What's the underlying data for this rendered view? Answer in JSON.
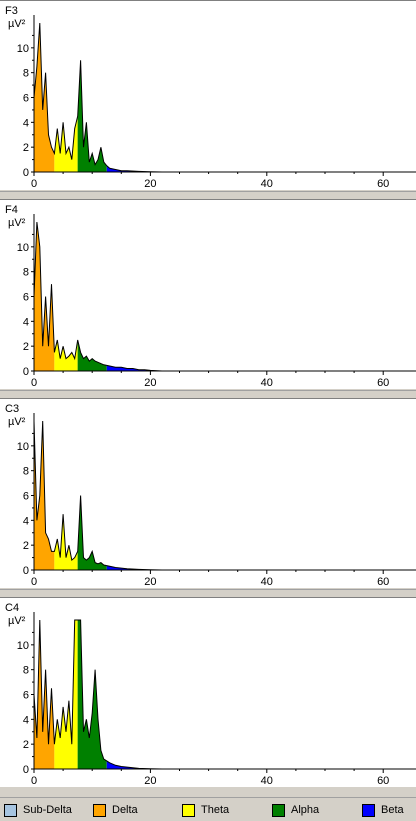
{
  "legend": [
    {
      "name": "Sub-Delta",
      "color": "#a6c4e0"
    },
    {
      "name": "Delta",
      "color": "#ffa500"
    },
    {
      "name": "Theta",
      "color": "#ffff00"
    },
    {
      "name": "Alpha",
      "color": "#008000"
    },
    {
      "name": "Beta",
      "color": "#0000ff"
    }
  ],
  "chart_data": [
    {
      "type": "area",
      "channel": "F3",
      "ylabel": "µV²",
      "xlim": [
        0,
        65
      ],
      "ylim": [
        0,
        12
      ],
      "xticks": [
        0,
        20,
        40,
        60
      ],
      "yticks": [
        0,
        2,
        4,
        6,
        8,
        10
      ],
      "bands": [
        {
          "name": "Delta",
          "from": 0,
          "to": 3.5
        },
        {
          "name": "Theta",
          "from": 3.5,
          "to": 7.5
        },
        {
          "name": "Alpha",
          "from": 7.5,
          "to": 12.5
        },
        {
          "name": "Beta",
          "from": 12.5,
          "to": 30
        }
      ],
      "x": [
        0,
        0.5,
        1,
        1.5,
        2,
        2.5,
        3,
        3.5,
        4,
        4.5,
        5,
        5.5,
        6,
        6.5,
        7,
        7.5,
        8,
        8.5,
        9,
        9.5,
        10,
        10.5,
        11,
        11.5,
        12,
        12.5,
        13,
        14,
        15,
        16,
        18,
        20,
        22
      ],
      "y": [
        6.0,
        8.5,
        13.0,
        5.0,
        8.0,
        3.0,
        2.0,
        1.5,
        3.5,
        1.5,
        4.0,
        1.5,
        2.0,
        1.0,
        3.5,
        4.5,
        9.0,
        2.0,
        4.0,
        0.8,
        1.5,
        0.6,
        1.0,
        2.0,
        0.8,
        0.5,
        0.3,
        0.2,
        0.1,
        0.1,
        0.05,
        0.02,
        0
      ]
    },
    {
      "type": "area",
      "channel": "F4",
      "ylabel": "µV²",
      "xlim": [
        0,
        65
      ],
      "ylim": [
        0,
        12
      ],
      "xticks": [
        0,
        20,
        40,
        60
      ],
      "yticks": [
        0,
        2,
        4,
        6,
        8,
        10
      ],
      "bands": [
        {
          "name": "Delta",
          "from": 0,
          "to": 3.5
        },
        {
          "name": "Theta",
          "from": 3.5,
          "to": 7.5
        },
        {
          "name": "Alpha",
          "from": 7.5,
          "to": 12.5
        },
        {
          "name": "Beta",
          "from": 12.5,
          "to": 30
        }
      ],
      "x": [
        0,
        0.5,
        1,
        1.5,
        2,
        2.5,
        3,
        3.5,
        4,
        4.5,
        5,
        5.5,
        6,
        6.5,
        7,
        7.5,
        8,
        8.5,
        9,
        9.5,
        10,
        10.5,
        11,
        11.5,
        12,
        13,
        14,
        15,
        16,
        17,
        18,
        19,
        20,
        22
      ],
      "y": [
        6.0,
        12.0,
        10.0,
        2.0,
        6.0,
        2.0,
        7.0,
        1.5,
        2.5,
        1.0,
        2.0,
        1.0,
        1.2,
        1.5,
        1.0,
        2.5,
        1.5,
        1.0,
        1.2,
        0.8,
        1.0,
        0.8,
        0.7,
        0.6,
        0.5,
        0.4,
        0.3,
        0.3,
        0.2,
        0.2,
        0.1,
        0.1,
        0.05,
        0
      ]
    },
    {
      "type": "area",
      "channel": "C3",
      "ylabel": "µV²",
      "xlim": [
        0,
        65
      ],
      "ylim": [
        0,
        12
      ],
      "xticks": [
        0,
        20,
        40,
        60
      ],
      "yticks": [
        0,
        2,
        4,
        6,
        8,
        10
      ],
      "bands": [
        {
          "name": "Delta",
          "from": 0,
          "to": 3.5
        },
        {
          "name": "Theta",
          "from": 3.5,
          "to": 7.5
        },
        {
          "name": "Alpha",
          "from": 7.5,
          "to": 12.5
        },
        {
          "name": "Beta",
          "from": 12.5,
          "to": 30
        }
      ],
      "x": [
        0,
        0.5,
        1,
        1.5,
        2,
        2.5,
        3,
        3.5,
        4,
        4.5,
        5,
        5.5,
        6,
        6.5,
        7,
        7.5,
        8,
        8.5,
        9,
        9.5,
        10,
        10.5,
        11,
        11.5,
        12,
        13,
        14,
        15,
        16,
        18,
        20,
        22
      ],
      "y": [
        12.0,
        4.0,
        6.0,
        12.0,
        3.0,
        2.5,
        1.5,
        1.5,
        2.5,
        1.0,
        4.5,
        1.0,
        2.0,
        0.8,
        1.0,
        1.5,
        6.0,
        1.0,
        0.8,
        1.0,
        1.5,
        0.6,
        0.5,
        0.6,
        0.4,
        0.3,
        0.2,
        0.15,
        0.1,
        0.05,
        0.02,
        0
      ]
    },
    {
      "type": "area",
      "channel": "C4",
      "ylabel": "µV²",
      "xlim": [
        0,
        65
      ],
      "ylim": [
        0,
        12
      ],
      "xticks": [
        0,
        20,
        40,
        60
      ],
      "yticks": [
        0,
        2,
        4,
        6,
        8,
        10
      ],
      "bands": [
        {
          "name": "Delta",
          "from": 0,
          "to": 3.5
        },
        {
          "name": "Theta",
          "from": 3.5,
          "to": 7.5
        },
        {
          "name": "Alpha",
          "from": 7.5,
          "to": 12.5
        },
        {
          "name": "Beta",
          "from": 12.5,
          "to": 30
        }
      ],
      "x": [
        0,
        0.5,
        1,
        1.5,
        2,
        2.5,
        3,
        3.5,
        4,
        4.5,
        5,
        5.5,
        6,
        6.5,
        7,
        7.5,
        8,
        8.5,
        9,
        9.5,
        10,
        10.5,
        11,
        11.5,
        12,
        13,
        14,
        15,
        16,
        18,
        20,
        22
      ],
      "y": [
        6.0,
        2.5,
        12.5,
        3.0,
        8.0,
        2.0,
        6.5,
        2.0,
        4.0,
        2.5,
        5.0,
        3.0,
        5.5,
        2.0,
        13.0,
        12.5,
        13.0,
        3.0,
        4.0,
        2.5,
        4.5,
        8.0,
        4.0,
        1.5,
        0.8,
        0.5,
        0.3,
        0.2,
        0.15,
        0.05,
        0.02,
        0
      ]
    }
  ]
}
